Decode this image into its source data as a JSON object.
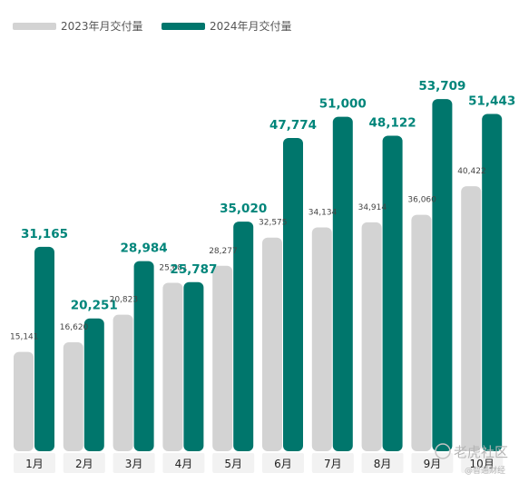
{
  "chart_data": {
    "type": "bar",
    "title": "",
    "xlabel": "",
    "ylabel": "",
    "ylim": [
      0,
      58000
    ],
    "grid": false,
    "legend_position": "top-left",
    "categories": [
      "1月",
      "2月",
      "3月",
      "4月",
      "5月",
      "6月",
      "7月",
      "8月",
      "9月",
      "10月"
    ],
    "series": [
      {
        "name": "2023年月交付量",
        "color": "#d3d3d3",
        "values": [
          15141,
          16620,
          20823,
          25681,
          28277,
          32575,
          34134,
          34914,
          36060,
          40422
        ],
        "labels": [
          "15,141",
          "16,620",
          "20,823",
          "25,681",
          "28,277",
          "32,575",
          "34,134",
          "34,914",
          "36,060",
          "40,422"
        ]
      },
      {
        "name": "2024年月交付量",
        "color": "#00766c",
        "values": [
          31165,
          20251,
          28984,
          25787,
          35020,
          47774,
          51000,
          48122,
          53709,
          51443
        ],
        "labels": [
          "31,165",
          "20,251",
          "28,984",
          "25,787",
          "35,020",
          "47,774",
          "51,000",
          "48,122",
          "53,709",
          "51,443"
        ]
      }
    ],
    "label_colors": {
      "series_2024": "#00857a",
      "series_2023": "#444444"
    }
  },
  "watermark": {
    "main": "老虎社区",
    "sub": "@智通财经"
  }
}
